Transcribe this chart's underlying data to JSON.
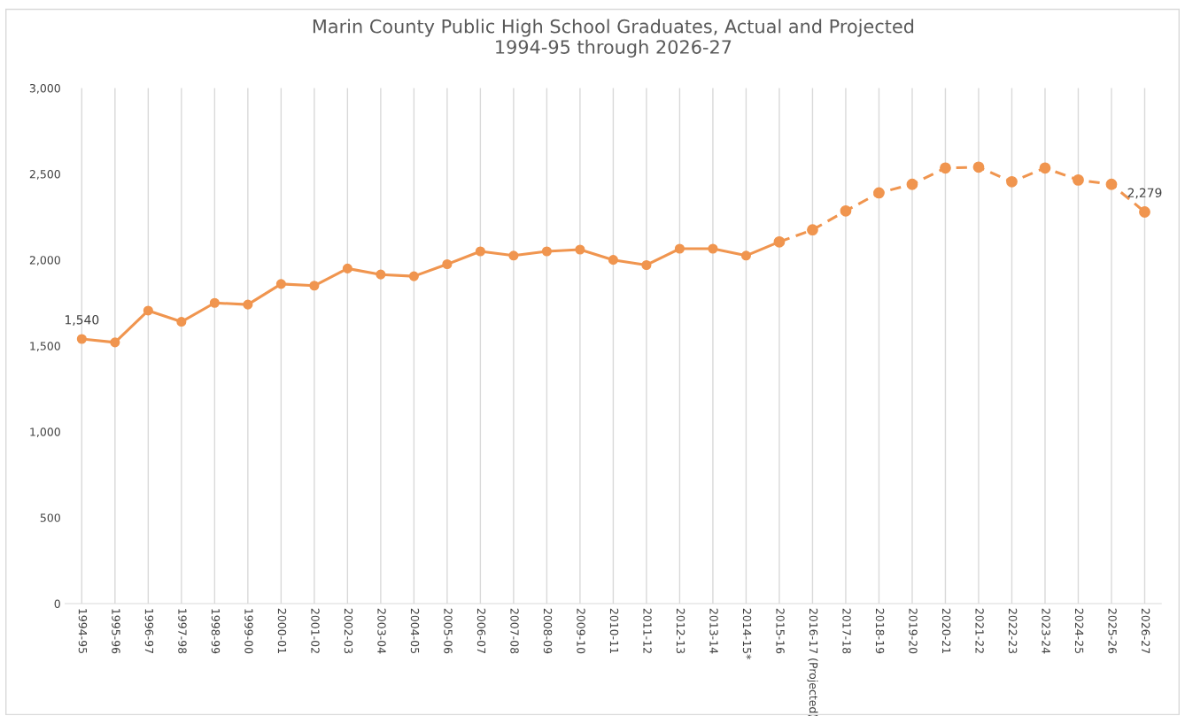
{
  "chart_data": {
    "type": "line",
    "title": "Marin County Public High School Graduates, Actual and Projected\n1994-95 through 2026-27",
    "categories": [
      "1994-95",
      "1995-96",
      "1996-97",
      "1997-98",
      "1998-99",
      "1999-00",
      "2000-01",
      "2001-02",
      "2002-03",
      "2003-04",
      "2004-05",
      "2005-06",
      "2006-07",
      "2007-08",
      "2008-09",
      "2009-10",
      "2010-11",
      "2011-12",
      "2012-13",
      "2013-14",
      "2014-15*",
      "2015-16",
      "2016-17 (Projected)",
      "2017-18",
      "2018-19",
      "2019-20",
      "2020-21",
      "2021-22",
      "2022-23",
      "2023-24",
      "2024-25",
      "2025-26",
      "2026-27"
    ],
    "series": [
      {
        "color": "#f0954f",
        "line_style": "solid",
        "values": [
          1540,
          1520,
          1705,
          1640,
          1750,
          1740,
          1860,
          1850,
          1950,
          1915,
          1905,
          1975,
          2050,
          2025,
          2050,
          2060,
          2000,
          1970,
          2065,
          2065,
          2025,
          2105,
          null,
          null,
          null,
          null,
          null,
          null,
          null,
          null,
          null,
          null,
          null
        ],
        "value_labels": [
          "1,540",
          null,
          null,
          null,
          null,
          null,
          null,
          null,
          null,
          null,
          null,
          null,
          null,
          null,
          null,
          null,
          null,
          null,
          null,
          null,
          null,
          null,
          null,
          null,
          null,
          null,
          null,
          null,
          null,
          null,
          null,
          null,
          null
        ]
      },
      {
        "color": "#f0954f",
        "line_style": "dashed",
        "values": [
          null,
          null,
          null,
          null,
          null,
          null,
          null,
          null,
          null,
          null,
          null,
          null,
          null,
          null,
          null,
          null,
          null,
          null,
          null,
          null,
          null,
          2105,
          2175,
          2285,
          2390,
          2440,
          2535,
          2540,
          2455,
          2535,
          2465,
          2440,
          2279
        ],
        "value_labels": [
          null,
          null,
          null,
          null,
          null,
          null,
          null,
          null,
          null,
          null,
          null,
          null,
          null,
          null,
          null,
          null,
          null,
          null,
          null,
          null,
          null,
          null,
          null,
          null,
          null,
          null,
          null,
          null,
          null,
          null,
          null,
          null,
          "2,279"
        ]
      }
    ],
    "ylim": [
      0,
      3000
    ],
    "yticks": [
      {
        "value": 0,
        "label": "0"
      },
      {
        "value": 500,
        "label": "500"
      },
      {
        "value": 1000,
        "label": "1,000"
      },
      {
        "value": 1500,
        "label": "1,500"
      },
      {
        "value": 2000,
        "label": "2,000"
      },
      {
        "value": 2500,
        "label": "2,500"
      },
      {
        "value": 3000,
        "label": "3,000"
      }
    ],
    "grid": "x",
    "marker": "circle",
    "legend": false
  }
}
